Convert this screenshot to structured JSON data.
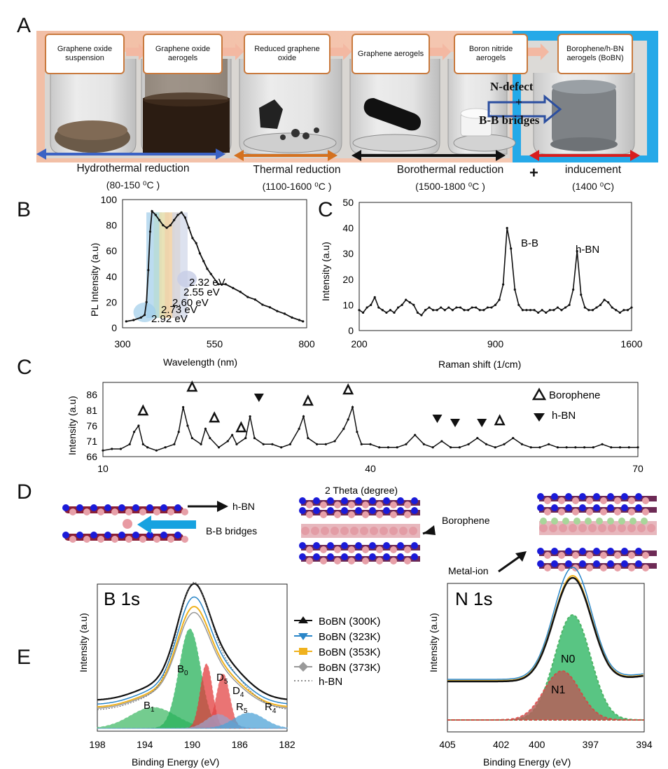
{
  "panel_labels": {
    "A": "A",
    "B": "B",
    "C1": "C",
    "C2": "C",
    "D": "D",
    "E": "E"
  },
  "panelA": {
    "steps": [
      "Graphene oxide suspension",
      "Graphene oxide aerogels",
      "Reduced graphene oxide",
      "Graphene aerogels",
      "Boron nitride aerogels",
      "Borophene/h-BN aerogels (BoBN)"
    ],
    "overlay_top": "N-defect",
    "overlay_plus": "+",
    "overlay_bottom": "B-B bridges",
    "processes": [
      {
        "name": "Hydrothermal reduction",
        "temp": "(80-150 ⁰C )",
        "color": "#3b62c4"
      },
      {
        "name": "Thermal reduction",
        "temp": "(1100-1600 ⁰C )",
        "color": "#d4711f"
      },
      {
        "name": "Borothermal reduction",
        "temp": "(1500-1800 ⁰C )",
        "color": "#111111"
      },
      {
        "name": "inducement",
        "temp": "(1400 ⁰C)",
        "color": "#d81e1e"
      }
    ],
    "plus": "+"
  },
  "chart_data": [
    {
      "type": "line",
      "id": "B",
      "xlabel": "Wavelength (nm)",
      "ylabel": "PL Intensity (a.u)",
      "xlim": [
        300,
        800
      ],
      "ylim": [
        0,
        100
      ],
      "xticks": [
        "300",
        "550",
        "800"
      ],
      "yticks": [
        "0",
        "20",
        "40",
        "60",
        "80",
        "100"
      ],
      "x": [
        310,
        330,
        350,
        360,
        365,
        370,
        375,
        380,
        390,
        400,
        410,
        420,
        430,
        440,
        450,
        460,
        470,
        480,
        490,
        500,
        510,
        520,
        530,
        540,
        560,
        580,
        600,
        620,
        640,
        660,
        680,
        700,
        720,
        740,
        760,
        780,
        790
      ],
      "y": [
        5,
        6,
        8,
        10,
        20,
        45,
        75,
        91,
        88,
        84,
        80,
        78,
        80,
        84,
        88,
        90,
        86,
        78,
        70,
        66,
        58,
        52,
        46,
        42,
        34,
        34,
        31,
        28,
        24,
        22,
        18,
        16,
        13,
        11,
        8,
        6,
        5
      ],
      "annotations": [
        "2.32 eV",
        "2.55 eV",
        "2.60 eV",
        "2.73 eV",
        "2.92 eV"
      ]
    },
    {
      "type": "line",
      "id": "C_raman",
      "xlabel": "Raman shift (1/cm)",
      "ylabel": "Intensity (a.u)",
      "xlim": [
        200,
        1600
      ],
      "ylim": [
        0,
        50
      ],
      "xticks": [
        "200",
        "900",
        "1600"
      ],
      "yticks": [
        "0",
        "10",
        "20",
        "30",
        "40",
        "50"
      ],
      "x": [
        200,
        220,
        240,
        260,
        280,
        300,
        320,
        340,
        360,
        380,
        400,
        420,
        440,
        460,
        480,
        500,
        520,
        540,
        560,
        580,
        600,
        620,
        640,
        660,
        680,
        700,
        720,
        740,
        760,
        780,
        800,
        820,
        840,
        860,
        880,
        900,
        920,
        940,
        960,
        980,
        1000,
        1020,
        1040,
        1060,
        1080,
        1100,
        1120,
        1140,
        1160,
        1180,
        1200,
        1220,
        1240,
        1260,
        1280,
        1300,
        1320,
        1340,
        1360,
        1380,
        1400,
        1420,
        1440,
        1460,
        1480,
        1500,
        1520,
        1540,
        1560,
        1580,
        1600
      ],
      "y": [
        8,
        7,
        9,
        10,
        13,
        9,
        8,
        7,
        8,
        7,
        9,
        10,
        12,
        11,
        10,
        7,
        6,
        8,
        9,
        8,
        8,
        9,
        8,
        9,
        8,
        9,
        9,
        8,
        8,
        9,
        9,
        8,
        8,
        9,
        9,
        10,
        12,
        18,
        40,
        32,
        16,
        10,
        8,
        8,
        8,
        8,
        7,
        8,
        7,
        8,
        8,
        9,
        8,
        9,
        10,
        16,
        31,
        14,
        9,
        8,
        8,
        9,
        10,
        12,
        11,
        9,
        8,
        7,
        8,
        8,
        9
      ],
      "annotations": [
        "B-B",
        "h-BN"
      ]
    },
    {
      "type": "line",
      "id": "C_xrd",
      "xlabel": "2 Theta (degree)",
      "ylabel": "Intensity (a.u)",
      "xlim": [
        10,
        70
      ],
      "ylim": [
        66,
        90
      ],
      "xticks": [
        "10",
        "40",
        "70"
      ],
      "yticks": [
        "66",
        "71",
        "76",
        "81",
        "86"
      ],
      "x": [
        10,
        11,
        12,
        13,
        13.5,
        14,
        14.5,
        15,
        16,
        17,
        18,
        18.5,
        19,
        19.5,
        20,
        21,
        21.5,
        22,
        23,
        24,
        24.5,
        25,
        26,
        26.5,
        27,
        28,
        29,
        30,
        31,
        32,
        32.5,
        33,
        34,
        35,
        36,
        37,
        37.5,
        38,
        38.5,
        39,
        40,
        41,
        42,
        43,
        44,
        45,
        46,
        47,
        48,
        49,
        50,
        51,
        52,
        53,
        54,
        55,
        56,
        57,
        58,
        59,
        60,
        61,
        62,
        63,
        64,
        65,
        66,
        67,
        68,
        69,
        70
      ],
      "y": [
        68,
        68.5,
        68.5,
        70,
        74,
        76,
        70,
        69,
        68,
        69,
        70,
        74,
        82,
        76,
        72,
        70,
        75,
        72,
        69,
        71,
        73,
        70,
        72,
        79,
        72,
        70,
        70,
        69,
        70,
        75,
        79,
        72,
        70,
        70,
        71,
        75,
        78,
        82,
        74,
        70,
        70,
        69,
        69,
        69,
        70,
        73,
        70,
        69,
        71,
        69,
        69,
        70,
        72,
        70,
        69,
        70,
        72,
        70,
        69,
        69,
        70,
        69,
        69,
        69,
        69,
        69,
        70,
        69,
        69,
        69,
        69
      ],
      "legend": [
        "Borophene",
        "h-BN"
      ]
    },
    {
      "type": "line",
      "id": "E_B1s",
      "title": "B 1s",
      "xlabel": "Binding Energy (eV)",
      "ylabel": "Intensity (a.u)",
      "xlim": [
        198,
        182
      ],
      "xticks": [
        "198",
        "194",
        "190",
        "186",
        "182"
      ],
      "series": [
        {
          "name": "BoBN (300K)",
          "color": "#111111"
        },
        {
          "name": "BoBN (323K)",
          "color": "#2a86c8"
        },
        {
          "name": "BoBN (353K)",
          "color": "#f0b21e"
        },
        {
          "name": "BoBN (373K)",
          "color": "#999999"
        },
        {
          "name": "h-BN",
          "color": "#666666"
        }
      ],
      "peaks": [
        "B0",
        "B1",
        "D5",
        "D4",
        "R5",
        "R4"
      ]
    },
    {
      "type": "line",
      "id": "E_N1s",
      "title": "N 1s",
      "xlabel": "Binding Energy (eV)",
      "ylabel": "Intensity (a.u)",
      "xlim": [
        405,
        394
      ],
      "xticks": [
        "405",
        "402",
        "400",
        "397",
        "394"
      ],
      "peaks": [
        "N0",
        "N1"
      ]
    }
  ],
  "panelD": {
    "labels": [
      "h-BN",
      "B-B bridges",
      "Borophene",
      "Metal-ion"
    ]
  },
  "legendE": {
    "items": [
      "BoBN (300K)",
      "BoBN (323K)",
      "BoBN (353K)",
      "BoBN (373K)",
      "h-BN"
    ]
  },
  "peak_sub": {
    "B0": "0",
    "B1": "1",
    "D5": "5",
    "D4": "4",
    "R5": "5",
    "R4": "4"
  }
}
